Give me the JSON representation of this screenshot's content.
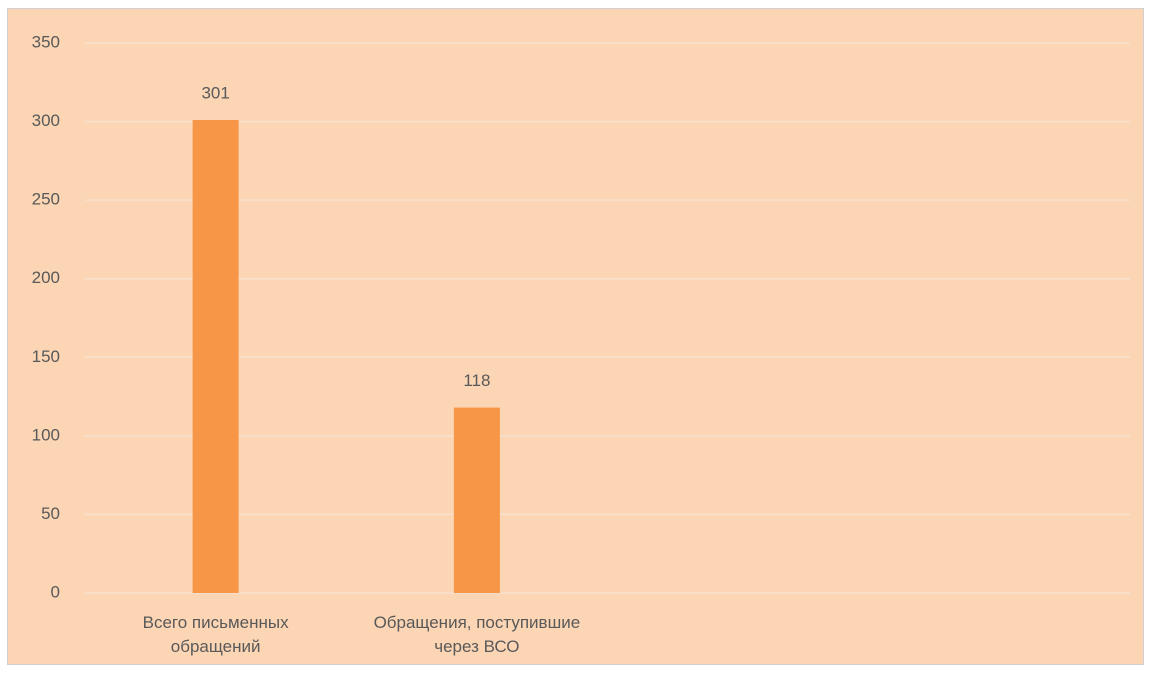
{
  "chart_data": {
    "type": "bar",
    "categories": [
      "Всего письменных обращений",
      "Обращения, поступившие через ВСО"
    ],
    "values": [
      301,
      118
    ],
    "color": "#f79646",
    "ylim": [
      0,
      350
    ],
    "yticks": [
      0,
      50,
      100,
      150,
      200,
      250,
      300,
      350
    ],
    "grid": true
  }
}
